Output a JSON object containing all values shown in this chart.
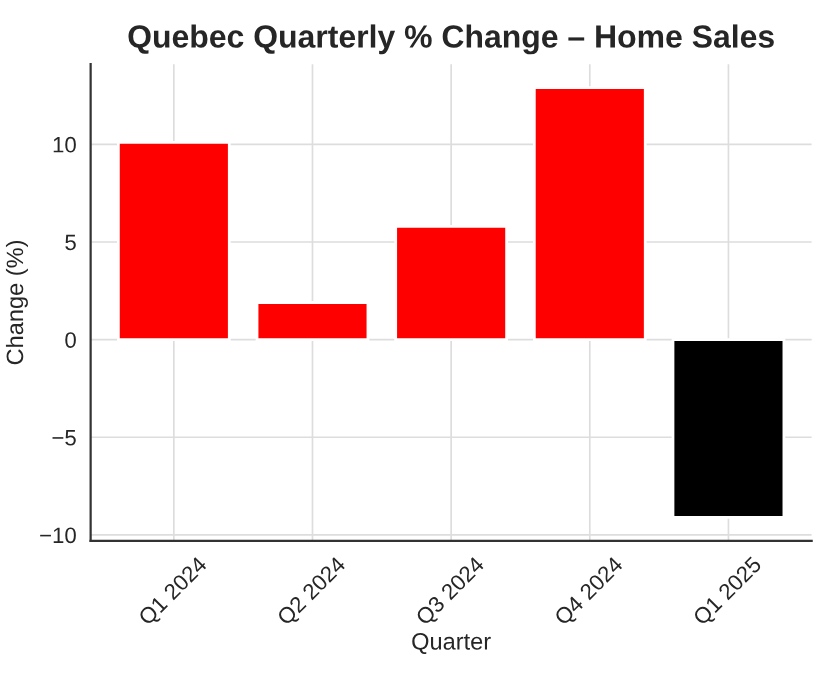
{
  "chart_data": {
    "type": "bar",
    "title": "Quebec Quarterly % Change – Home Sales",
    "xlabel": "Quarter",
    "ylabel": "Change (%)",
    "categories": [
      "Q1 2024",
      "Q2 2024",
      "Q3 2024",
      "Q4 2024",
      "Q1 2025"
    ],
    "values": [
      10.1,
      1.9,
      5.8,
      12.9,
      -9.1
    ],
    "colors": [
      "#ff0000",
      "#ff0000",
      "#ff0000",
      "#ff0000",
      "#000000"
    ],
    "ylim": [
      -10.3,
      14.1
    ],
    "yticks": [
      {
        "value": -10,
        "label": "−10"
      },
      {
        "value": -5,
        "label": "−5"
      },
      0,
      5,
      10
    ],
    "grid": true
  }
}
